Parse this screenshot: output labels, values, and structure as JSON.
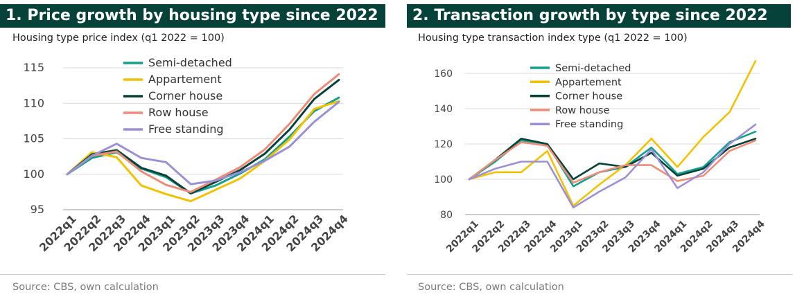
{
  "chart_data": [
    {
      "type": "line",
      "panel_title": "1. Price growth by housing type since 2022",
      "subtitle": "Housing type price index (q1 2022 = 100)",
      "source": "Source: CBS, own calculation",
      "categories": [
        "2022q1",
        "2022q2",
        "2022q3",
        "2022q4",
        "2023q1",
        "2023q2",
        "2023q3",
        "2023q4",
        "2024q1",
        "2024q2",
        "2024q3",
        "2024q4"
      ],
      "ylim": [
        95,
        115
      ],
      "yticks": [
        95,
        100,
        105,
        110,
        115
      ],
      "grid": true,
      "legend": "top-center",
      "series": [
        {
          "name": "Semi-detached",
          "color": "#12a08c",
          "values": [
            100,
            102.3,
            103.1,
            100.8,
            99.6,
            97.3,
            98.4,
            100.1,
            102.1,
            105.3,
            108.9,
            110.8
          ]
        },
        {
          "name": "Appartement",
          "color": "#f2c200",
          "values": [
            100,
            103.1,
            102.4,
            98.4,
            97.2,
            96.2,
            97.8,
            99.4,
            101.9,
            104.9,
            109.2,
            110.3
          ]
        },
        {
          "name": "Corner house",
          "color": "#06423a",
          "values": [
            100,
            102.8,
            103.4,
            100.9,
            99.8,
            97.3,
            98.9,
            100.6,
            102.9,
            106.3,
            110.6,
            113.3
          ]
        },
        {
          "name": "Row house",
          "color": "#ef8c78",
          "values": [
            100,
            102.6,
            103.2,
            100.4,
            98.5,
            97.5,
            99.2,
            101.0,
            103.5,
            107.1,
            111.3,
            114.1
          ]
        },
        {
          "name": "Free standing",
          "color": "#9b8fd6",
          "values": [
            100,
            102.6,
            104.3,
            102.3,
            101.7,
            98.6,
            99.1,
            100.3,
            101.9,
            103.9,
            107.4,
            110.2
          ]
        }
      ]
    },
    {
      "type": "line",
      "panel_title": "2. Transaction growth by type since 2022",
      "subtitle": "Housing type transaction index type (q1 2022 = 100)",
      "source": "Source: CBS, own calculation",
      "categories": [
        "2022q1",
        "2022q2",
        "2022q3",
        "2022q4",
        "2023q1",
        "2023q2",
        "2023q3",
        "2023q4",
        "2024q1",
        "2024q2",
        "2024q3",
        "2024q4"
      ],
      "ylim": [
        80,
        170
      ],
      "yticks": [
        80,
        100,
        120,
        140,
        160
      ],
      "grid": true,
      "legend": "top-center",
      "series": [
        {
          "name": "Semi-detached",
          "color": "#12a08c",
          "values": [
            100,
            110,
            122,
            120,
            96,
            104,
            107,
            118,
            103,
            107,
            121,
            127
          ]
        },
        {
          "name": "Appartement",
          "color": "#f2c200",
          "values": [
            100,
            104,
            104,
            116,
            85,
            97,
            108,
            123,
            107,
            124,
            138,
            167
          ]
        },
        {
          "name": "Corner house",
          "color": "#06423a",
          "values": [
            100,
            111,
            123,
            120,
            100,
            109,
            107,
            115,
            102,
            106,
            118,
            123
          ]
        },
        {
          "name": "Row house",
          "color": "#ef8c78",
          "values": [
            100,
            111,
            121,
            119,
            98,
            104,
            108,
            108,
            99,
            102,
            116,
            122
          ]
        },
        {
          "name": "Free standing",
          "color": "#9b8fd6",
          "values": [
            100,
            106,
            110,
            110,
            84,
            93,
            101,
            117,
            95,
            104,
            120,
            131
          ]
        }
      ]
    }
  ]
}
